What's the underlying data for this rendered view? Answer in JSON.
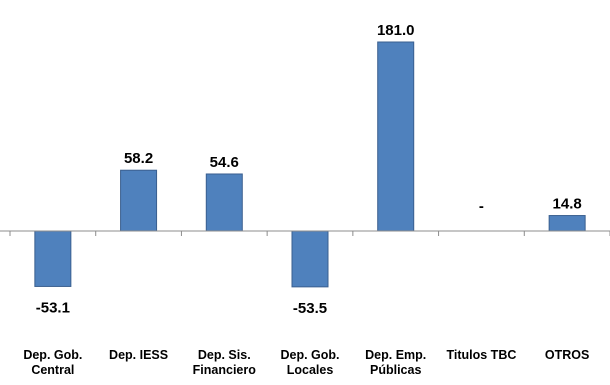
{
  "chart_data": {
    "type": "bar",
    "categories": [
      [
        "Dep. Gob.",
        "Central"
      ],
      [
        "Dep. IESS"
      ],
      [
        "Dep. Sis.",
        "Financiero"
      ],
      [
        "Dep. Gob.",
        "Locales"
      ],
      [
        "Dep. Emp.",
        "Públicas"
      ],
      [
        "Titulos TBC"
      ],
      [
        "OTROS"
      ]
    ],
    "values": [
      -53.1,
      58.2,
      54.6,
      -53.5,
      181.0,
      null,
      14.8
    ],
    "data_labels": [
      "-53.1",
      "58.2",
      "54.6",
      "-53.5",
      "181.0",
      "-",
      "14.8"
    ],
    "title": "",
    "xlabel": "",
    "ylabel": "",
    "ylim": [
      -60,
      195
    ],
    "grid": false,
    "legend": "none",
    "bar_color": "#4f81bd"
  }
}
